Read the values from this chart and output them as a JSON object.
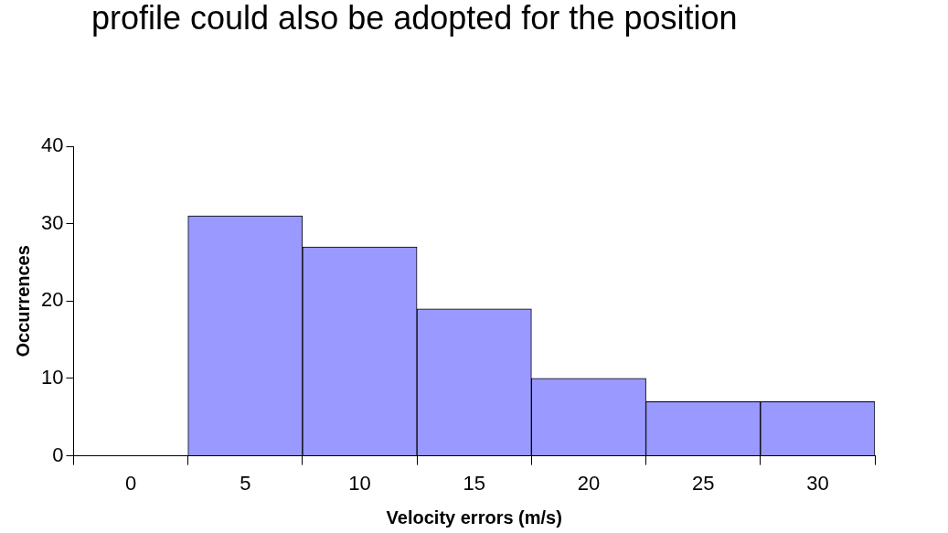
{
  "chart_data": {
    "type": "bar",
    "annotations": [
      "profile could also be adopted for the position"
    ],
    "xlabel": "Velocity errors (m/s)",
    "ylabel": "Occurrences",
    "categories": [
      "0",
      "5",
      "10",
      "15",
      "20",
      "25",
      "30"
    ],
    "values": [
      0,
      31,
      27,
      19,
      10,
      7,
      7
    ],
    "color": "#9999ff",
    "ylim": [
      0,
      40
    ],
    "yticks": [
      0,
      10,
      20,
      30,
      40
    ],
    "grid": false,
    "legend": false
  }
}
